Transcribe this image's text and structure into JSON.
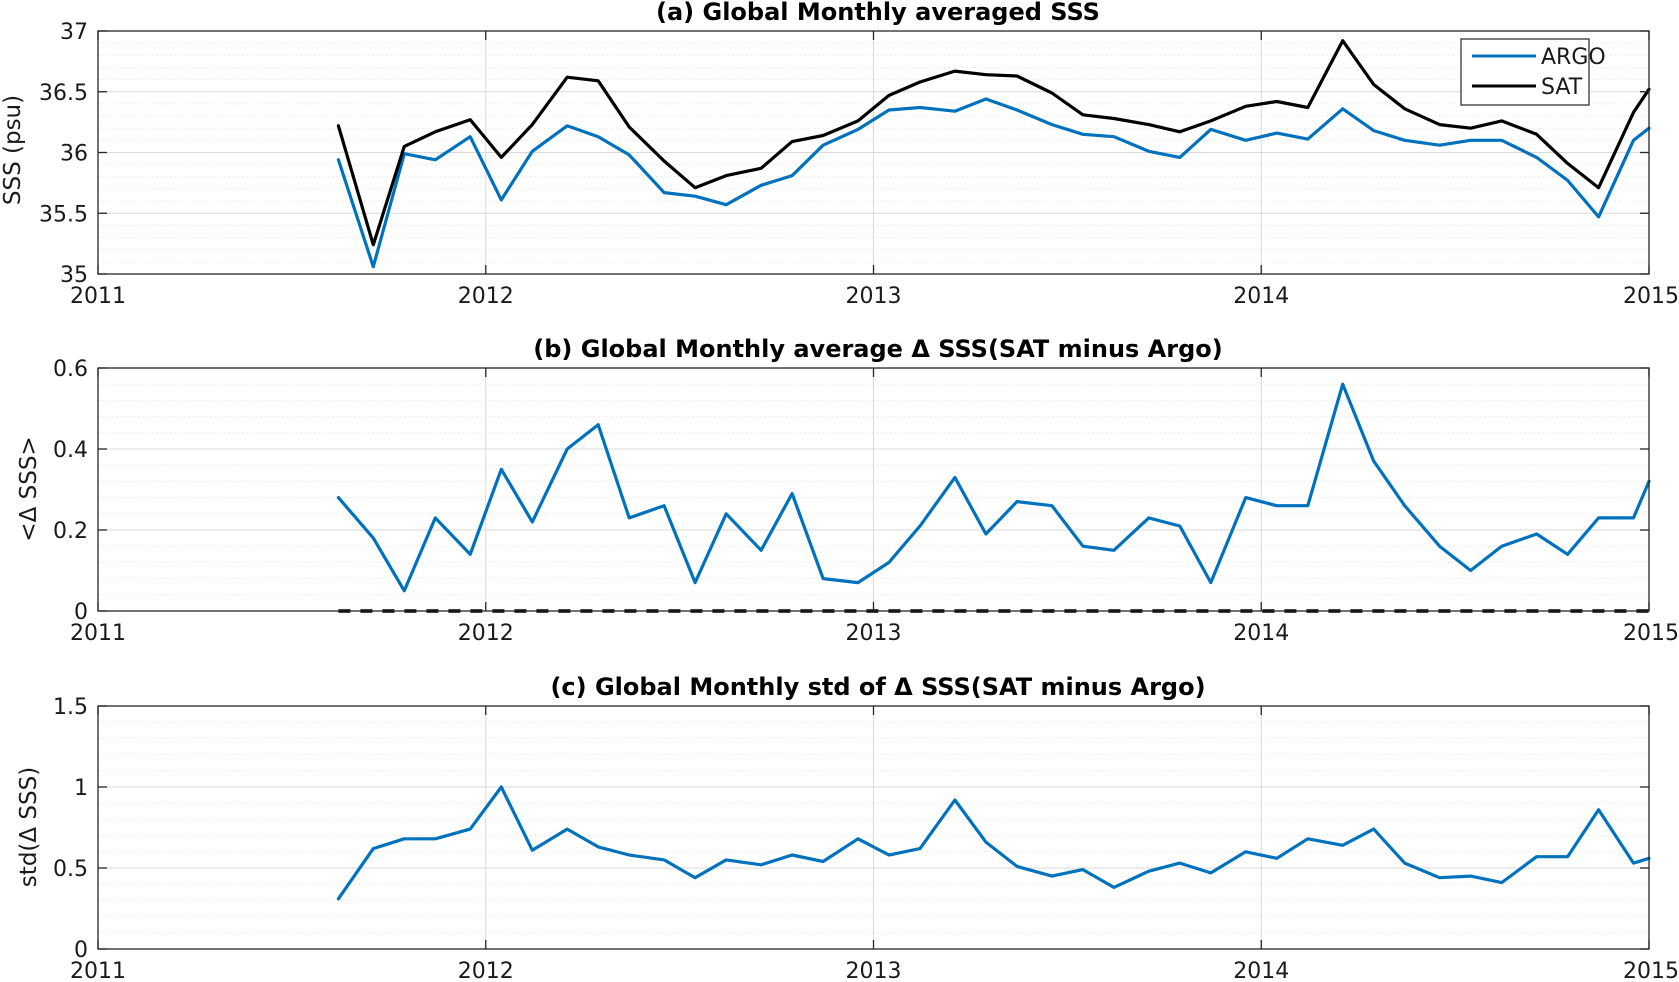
{
  "colors": {
    "argo": "#0072BD",
    "sat": "#000000",
    "axis": "#262626",
    "grid_major": "#d9d9d9",
    "grid_minor": "#e6e6e6"
  },
  "chart_data": [
    {
      "type": "line",
      "title": "(a) Global Monthly averaged SSS",
      "ylabel": "SSS (psu)",
      "xlim": [
        2011,
        2015
      ],
      "ylim": [
        35,
        37
      ],
      "x_ticks": [
        2011,
        2012,
        2013,
        2014,
        2015
      ],
      "x_tick_labels": [
        "2011",
        "2012",
        "2013",
        "2014",
        "2015"
      ],
      "y_ticks": [
        35,
        35.5,
        36,
        36.5,
        37
      ],
      "y_tick_labels": [
        "35",
        "35.5",
        "36",
        "36.5",
        "37"
      ],
      "y_minor_step": 0.1,
      "grid": true,
      "legend": "top-right",
      "x": [
        2011.62,
        2011.71,
        2011.79,
        2011.87,
        2011.96,
        2012.04,
        2012.12,
        2012.21,
        2012.29,
        2012.37,
        2012.46,
        2012.54,
        2012.62,
        2012.71,
        2012.79,
        2012.87,
        2012.96,
        2013.04,
        2013.12,
        2013.21,
        2013.29,
        2013.37,
        2013.46,
        2013.54,
        2013.62,
        2013.71,
        2013.79,
        2013.87,
        2013.96,
        2014.04,
        2014.12,
        2014.21,
        2014.29,
        2014.37,
        2014.46,
        2014.54,
        2014.62,
        2014.71,
        2014.79,
        2014.87,
        2014.96,
        2015.0
      ],
      "series": [
        {
          "name": "ARGO",
          "color": "#0072BD",
          "values": [
            35.94,
            35.06,
            35.99,
            35.94,
            36.13,
            35.61,
            36.01,
            36.22,
            36.13,
            35.98,
            35.67,
            35.64,
            35.57,
            35.73,
            35.81,
            36.06,
            36.19,
            36.35,
            36.37,
            36.34,
            36.44,
            36.35,
            36.23,
            36.15,
            36.13,
            36.01,
            35.96,
            36.19,
            36.1,
            36.16,
            36.11,
            36.36,
            36.18,
            36.1,
            36.06,
            36.1,
            36.1,
            35.96,
            35.77,
            35.47,
            36.1,
            36.2
          ]
        },
        {
          "name": "SAT",
          "color": "#000000",
          "values": [
            36.22,
            35.24,
            36.05,
            36.17,
            36.27,
            35.96,
            36.23,
            36.62,
            36.59,
            36.21,
            35.93,
            35.71,
            35.81,
            35.87,
            36.09,
            36.14,
            36.26,
            36.47,
            36.58,
            36.67,
            36.64,
            36.63,
            36.49,
            36.31,
            36.28,
            36.23,
            36.17,
            36.26,
            36.38,
            36.42,
            36.37,
            36.92,
            36.56,
            36.36,
            36.23,
            36.2,
            36.26,
            36.15,
            35.91,
            35.71,
            36.33,
            36.52
          ]
        }
      ]
    },
    {
      "type": "line",
      "title": "(b) Global Monthly average Δ SSS(SAT minus Argo)",
      "ylabel": "<Δ SSS>",
      "xlim": [
        2011,
        2015
      ],
      "ylim": [
        0,
        0.6
      ],
      "x_ticks": [
        2011,
        2012,
        2013,
        2014,
        2015
      ],
      "x_tick_labels": [
        "2011",
        "2012",
        "2013",
        "2014",
        "2015"
      ],
      "y_ticks": [
        0,
        0.2,
        0.4,
        0.6
      ],
      "y_tick_labels": [
        "0",
        "0.2",
        "0.4",
        "0.6"
      ],
      "y_minor_step": 0.04,
      "grid": true,
      "zero_line": true,
      "x": [
        2011.62,
        2011.71,
        2011.79,
        2011.87,
        2011.96,
        2012.04,
        2012.12,
        2012.21,
        2012.29,
        2012.37,
        2012.46,
        2012.54,
        2012.62,
        2012.71,
        2012.79,
        2012.87,
        2012.96,
        2013.04,
        2013.12,
        2013.21,
        2013.29,
        2013.37,
        2013.46,
        2013.54,
        2013.62,
        2013.71,
        2013.79,
        2013.87,
        2013.96,
        2014.04,
        2014.12,
        2014.21,
        2014.29,
        2014.37,
        2014.46,
        2014.54,
        2014.62,
        2014.71,
        2014.79,
        2014.87,
        2014.96,
        2015.0
      ],
      "series": [
        {
          "color": "#0072BD",
          "values": [
            0.28,
            0.18,
            0.05,
            0.23,
            0.14,
            0.35,
            0.22,
            0.4,
            0.46,
            0.23,
            0.26,
            0.07,
            0.24,
            0.15,
            0.29,
            0.08,
            0.07,
            0.12,
            0.21,
            0.33,
            0.19,
            0.27,
            0.26,
            0.16,
            0.15,
            0.23,
            0.21,
            0.07,
            0.28,
            0.26,
            0.26,
            0.56,
            0.37,
            0.26,
            0.16,
            0.1,
            0.16,
            0.19,
            0.14,
            0.23,
            0.23,
            0.32
          ]
        }
      ]
    },
    {
      "type": "line",
      "title": "(c) Global Monthly std of Δ SSS(SAT minus Argo)",
      "ylabel": "std(Δ SSS)",
      "xlim": [
        2011,
        2015
      ],
      "ylim": [
        0,
        1.5
      ],
      "x_ticks": [
        2011,
        2012,
        2013,
        2014,
        2015
      ],
      "x_tick_labels": [
        "2011",
        "2012",
        "2013",
        "2014",
        "2015"
      ],
      "y_ticks": [
        0,
        0.5,
        1,
        1.5
      ],
      "y_tick_labels": [
        "0",
        "0.5",
        "1",
        "1.5"
      ],
      "y_minor_step": 0.1,
      "grid": true,
      "x": [
        2011.62,
        2011.71,
        2011.79,
        2011.87,
        2011.96,
        2012.04,
        2012.12,
        2012.21,
        2012.29,
        2012.37,
        2012.46,
        2012.54,
        2012.62,
        2012.71,
        2012.79,
        2012.87,
        2012.96,
        2013.04,
        2013.12,
        2013.21,
        2013.29,
        2013.37,
        2013.46,
        2013.54,
        2013.62,
        2013.71,
        2013.79,
        2013.87,
        2013.96,
        2014.04,
        2014.12,
        2014.21,
        2014.29,
        2014.37,
        2014.46,
        2014.54,
        2014.62,
        2014.71,
        2014.79,
        2014.87,
        2014.96,
        2015.0
      ],
      "series": [
        {
          "color": "#0072BD",
          "values": [
            0.31,
            0.62,
            0.68,
            0.68,
            0.74,
            1.0,
            0.61,
            0.74,
            0.63,
            0.58,
            0.55,
            0.44,
            0.55,
            0.52,
            0.58,
            0.54,
            0.68,
            0.58,
            0.62,
            0.92,
            0.66,
            0.51,
            0.45,
            0.49,
            0.38,
            0.48,
            0.53,
            0.47,
            0.6,
            0.56,
            0.68,
            0.64,
            0.74,
            0.53,
            0.44,
            0.45,
            0.41,
            0.57,
            0.57,
            0.86,
            0.53,
            0.56
          ]
        }
      ]
    }
  ]
}
